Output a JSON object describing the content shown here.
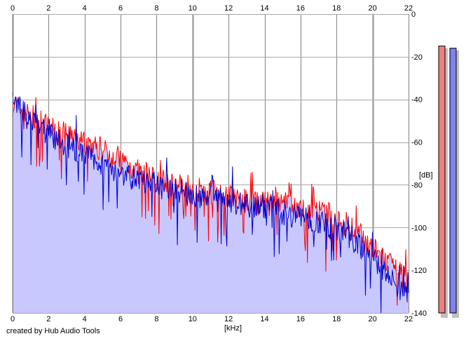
{
  "credit": "created by Hub Audio Tools",
  "chart_data": {
    "type": "area",
    "xlabel": "[kHz]",
    "ylabel": "[dB]",
    "xlim": [
      0,
      22
    ],
    "ylim": [
      -140,
      0
    ],
    "x_ticks": [
      0,
      2,
      4,
      6,
      8,
      10,
      12,
      14,
      16,
      18,
      20,
      22
    ],
    "y_ticks": [
      0,
      -20,
      -40,
      -60,
      -80,
      -100,
      -120,
      -140
    ],
    "x_axis_position": "top and bottom",
    "y_axis_position": "right",
    "grid": true,
    "x": [
      0,
      1,
      2,
      3,
      4,
      5,
      6,
      7,
      8,
      9,
      10,
      11,
      12,
      13,
      14,
      15,
      16,
      17,
      18,
      19,
      20,
      21,
      22
    ],
    "series": [
      {
        "color": "#ff0000",
        "values": [
          -42,
          -48,
          -53,
          -57,
          -60,
          -64,
          -68,
          -74,
          -77,
          -80,
          -82,
          -83,
          -85,
          -88,
          -89,
          -89,
          -91,
          -93,
          -95,
          -101,
          -110,
          -118,
          -126
        ]
      },
      {
        "color": "#0000cc",
        "values": [
          -40,
          -50,
          -56,
          -62,
          -66,
          -70,
          -74,
          -78,
          -80,
          -83,
          -85,
          -86,
          -88,
          -90,
          -90,
          -93,
          -95,
          -97,
          -101,
          -106,
          -114,
          -124,
          -132
        ]
      }
    ],
    "fill_color": "#c8c8ff",
    "level_meters": [
      {
        "color": "#ef7f7f",
        "level_db": -15
      },
      {
        "color": "#8080ef",
        "level_db": -16
      }
    ]
  }
}
